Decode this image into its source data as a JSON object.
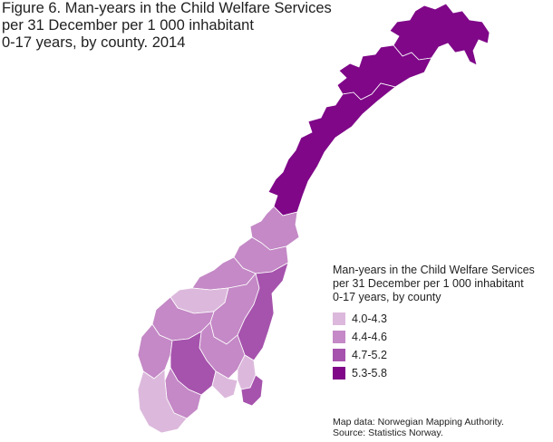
{
  "title": {
    "line1": "Figure 6. Man-years in the Child Welfare Services",
    "line2": "per 31 December per 1 000 inhabitant",
    "line3": "0-17 years, by county. 2014"
  },
  "legend": {
    "title_line1": "Man-years in the Child Welfare Services",
    "title_line2": "per 31 December per 1 000 inhabitant",
    "title_line3": "0-17 years, by county",
    "items": [
      {
        "label": "4.0-4.3",
        "color": "#dcb9dc"
      },
      {
        "label": "4.4-4.6",
        "color": "#c489c6"
      },
      {
        "label": "4.7-5.2",
        "color": "#a653ad"
      },
      {
        "label": "5.3-5.8",
        "color": "#7f0788"
      }
    ]
  },
  "source": {
    "line1": "Map data: Norwegian Mapping Authority.",
    "line2": "Source: Statistics Norway."
  },
  "colors": {
    "border": "#ffffff",
    "coast": "#ffffff"
  }
}
